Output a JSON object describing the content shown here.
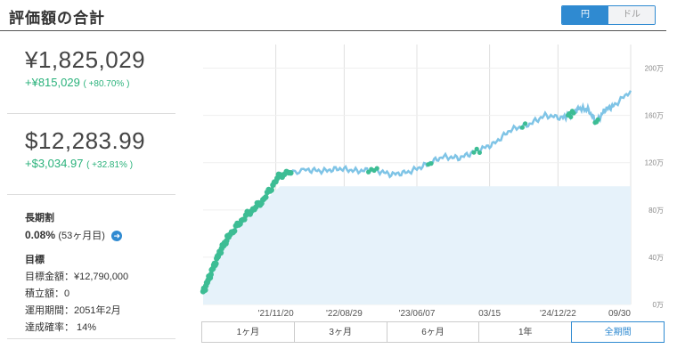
{
  "header": {
    "title": "評価額の合計",
    "currency_toggle": {
      "yen": "円",
      "dollar": "ドル",
      "selected": "yen"
    }
  },
  "yen_summary": {
    "value": "¥1,825,029",
    "gain": "+¥815,029",
    "gain_pct": "( +80.70% )"
  },
  "usd_summary": {
    "value": "$12,283.99",
    "gain": "+$3,034.97",
    "gain_pct": "( +32.81% )"
  },
  "long_term": {
    "label": "長期割",
    "rate": "0.08%",
    "months": "(53ヶ月目)",
    "arrow_icon": "arrow-right-circle-icon"
  },
  "goal": {
    "label": "目標",
    "target": "目標金額：¥12,790,000",
    "contribution": "積立額：0",
    "period": "運用期間：2051年2月",
    "probability": "達成確率： 14%"
  },
  "periods": [
    "1ヶ月",
    "3ヶ月",
    "6ヶ月",
    "1年",
    "全期間"
  ],
  "selected_period": "全期間",
  "chart_data": {
    "type": "line",
    "x_tick_labels": [
      "'21/11/20",
      "'22/08/29",
      "'23/06/07",
      "03/15",
      "'24/12/22",
      "09/30"
    ],
    "y_tick_labels": [
      "0万",
      "40万",
      "80万",
      "120万",
      "160万",
      "200万"
    ],
    "ylim": [
      0,
      2200000
    ],
    "colors": {
      "line": "#7fc4e6",
      "marker": "#3dbd94",
      "area": "#e6f2fa",
      "grid": "#e0e0e0"
    },
    "series": [
      {
        "values_by_tick_position": [
          [
            0.0,
            100000
          ],
          [
            0.02,
            280000
          ],
          [
            0.04,
            450000
          ],
          [
            0.06,
            580000
          ],
          [
            0.1,
            750000
          ],
          [
            0.14,
            880000
          ],
          [
            0.18,
            1100000
          ],
          [
            0.24,
            1140000
          ],
          [
            0.28,
            1130000
          ],
          [
            0.32,
            1150000
          ],
          [
            0.36,
            1130000
          ],
          [
            0.4,
            1140000
          ],
          [
            0.44,
            1100000
          ],
          [
            0.48,
            1120000
          ],
          [
            0.52,
            1180000
          ],
          [
            0.56,
            1250000
          ],
          [
            0.6,
            1240000
          ],
          [
            0.64,
            1300000
          ],
          [
            0.68,
            1360000
          ],
          [
            0.72,
            1480000
          ],
          [
            0.76,
            1520000
          ],
          [
            0.8,
            1600000
          ],
          [
            0.84,
            1580000
          ],
          [
            0.86,
            1610000
          ],
          [
            0.88,
            1660000
          ],
          [
            0.9,
            1650000
          ],
          [
            0.92,
            1540000
          ],
          [
            0.94,
            1650000
          ],
          [
            0.96,
            1680000
          ],
          [
            1.0,
            1810000
          ]
        ],
        "invested_principal": 1000000
      }
    ]
  }
}
